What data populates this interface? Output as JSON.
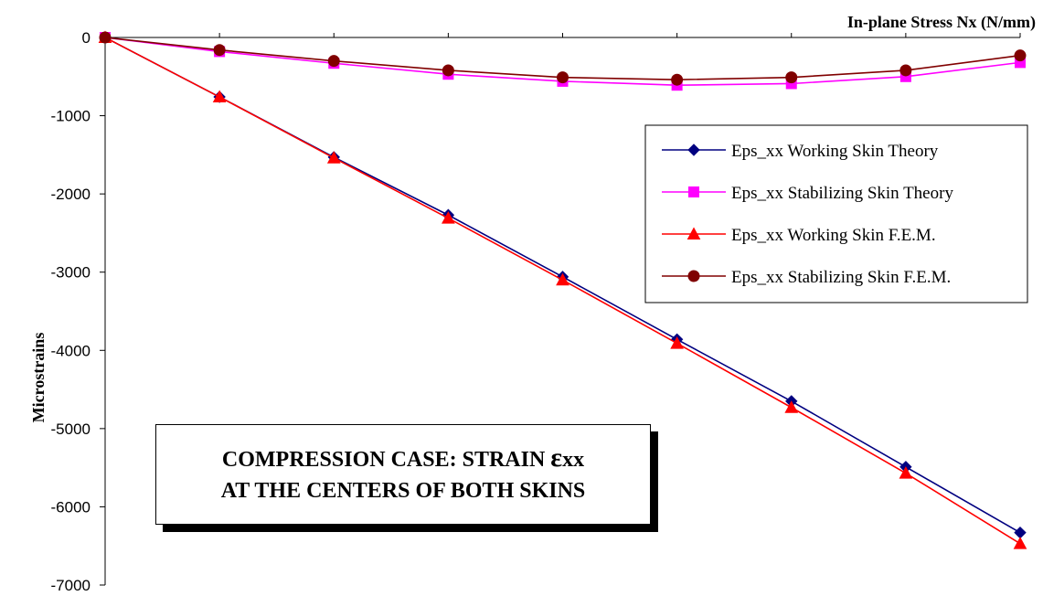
{
  "chart_data": {
    "type": "line",
    "title": "",
    "xlabel": "In-plane Stress  Nx (N/mm)",
    "ylabel": "Microstrains",
    "ylim": [
      -7000,
      0
    ],
    "yticks": [
      "0",
      "-1000",
      "-2000",
      "-3000",
      "-4000",
      "-5000",
      "-6000",
      "-7000"
    ],
    "x": [
      0,
      1,
      2,
      3,
      4,
      5,
      6,
      7,
      8
    ],
    "grid": false,
    "legend_position": "right",
    "series": [
      {
        "name": "Eps_xx Working Skin Theory",
        "color": "#000080",
        "marker": "diamond",
        "values": [
          0,
          -760,
          -1530,
          -2270,
          -3060,
          -3860,
          -4650,
          -5490,
          -6330
        ]
      },
      {
        "name": "Eps_xx Stabilizing Skin Theory",
        "color": "#ff00ff",
        "marker": "square",
        "values": [
          0,
          -180,
          -330,
          -470,
          -560,
          -610,
          -590,
          -500,
          -320
        ]
      },
      {
        "name": "Eps_xx Working Skin F.E.M.",
        "color": "#ff0000",
        "marker": "triangle",
        "values": [
          0,
          -760,
          -1540,
          -2310,
          -3100,
          -3910,
          -4730,
          -5570,
          -6470
        ]
      },
      {
        "name": "Eps_xx Stabilizing Skin F.E.M.",
        "color": "#800000",
        "marker": "circle",
        "values": [
          0,
          -160,
          -300,
          -420,
          -510,
          -540,
          -510,
          -420,
          -230
        ]
      }
    ],
    "annotation": {
      "line1_prefix": "COMPRESSION CASE:  STRAIN ",
      "line1_symbol": "ε",
      "line1_suffix": "xx",
      "line2": "AT THE CENTERS OF BOTH SKINS"
    }
  }
}
